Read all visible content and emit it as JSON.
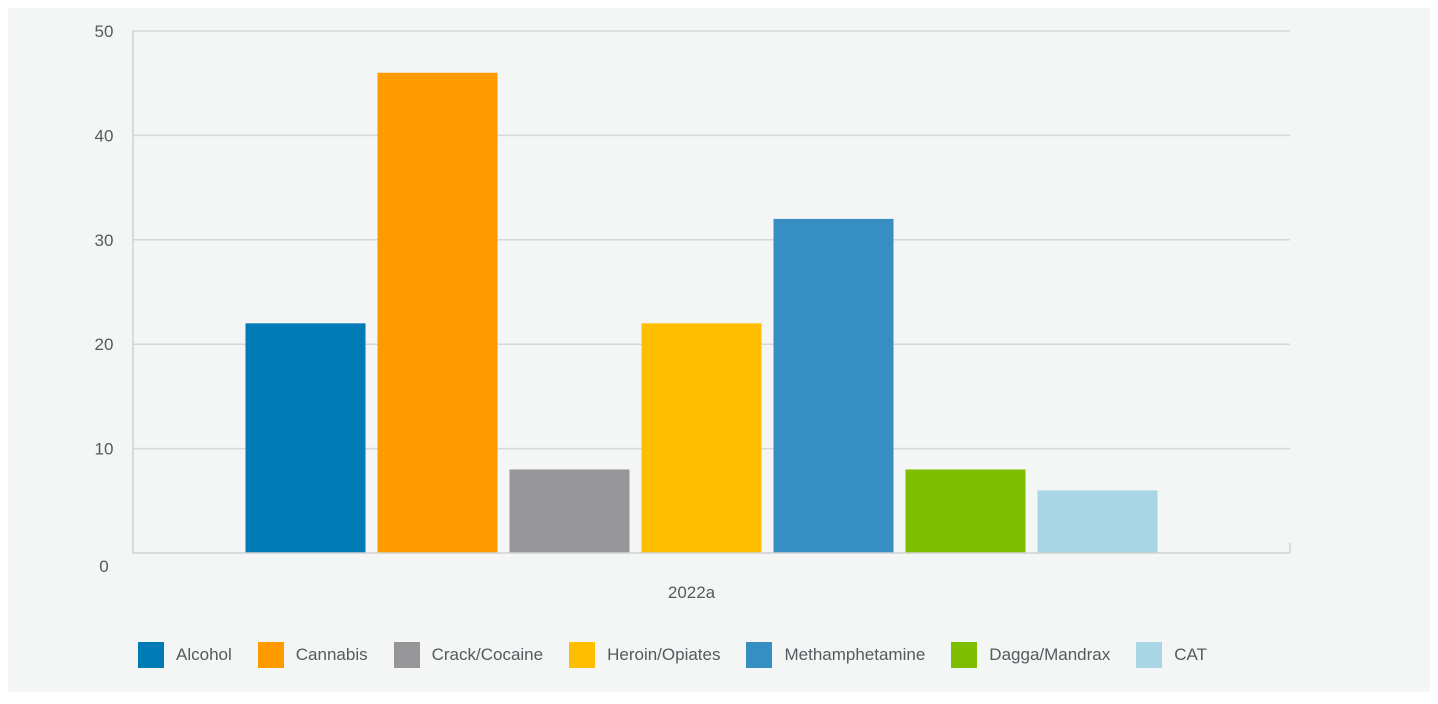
{
  "chart_data": {
    "type": "bar",
    "title": "",
    "xlabel": "",
    "ylabel": "",
    "categories": [
      "2022a"
    ],
    "ylim": [
      0,
      50
    ],
    "yticks": [
      0,
      10,
      20,
      30,
      40,
      50
    ],
    "grid": true,
    "legend_position": "bottom",
    "series": [
      {
        "name": "Alcohol",
        "values": [
          22
        ],
        "color": "#007bb5"
      },
      {
        "name": "Cannabis",
        "values": [
          46
        ],
        "color": "#ff9a00"
      },
      {
        "name": "Crack/Cocaine",
        "values": [
          8
        ],
        "color": "#969699"
      },
      {
        "name": "Heroin/Opiates",
        "values": [
          22
        ],
        "color": "#ffbe00"
      },
      {
        "name": "Methamphetamine",
        "values": [
          32
        ],
        "color": "#368ec2"
      },
      {
        "name": "Dagga/Mandrax",
        "values": [
          8
        ],
        "color": "#7fbd00"
      },
      {
        "name": "CAT",
        "values": [
          6
        ],
        "color": "#a8d6e4"
      }
    ]
  }
}
